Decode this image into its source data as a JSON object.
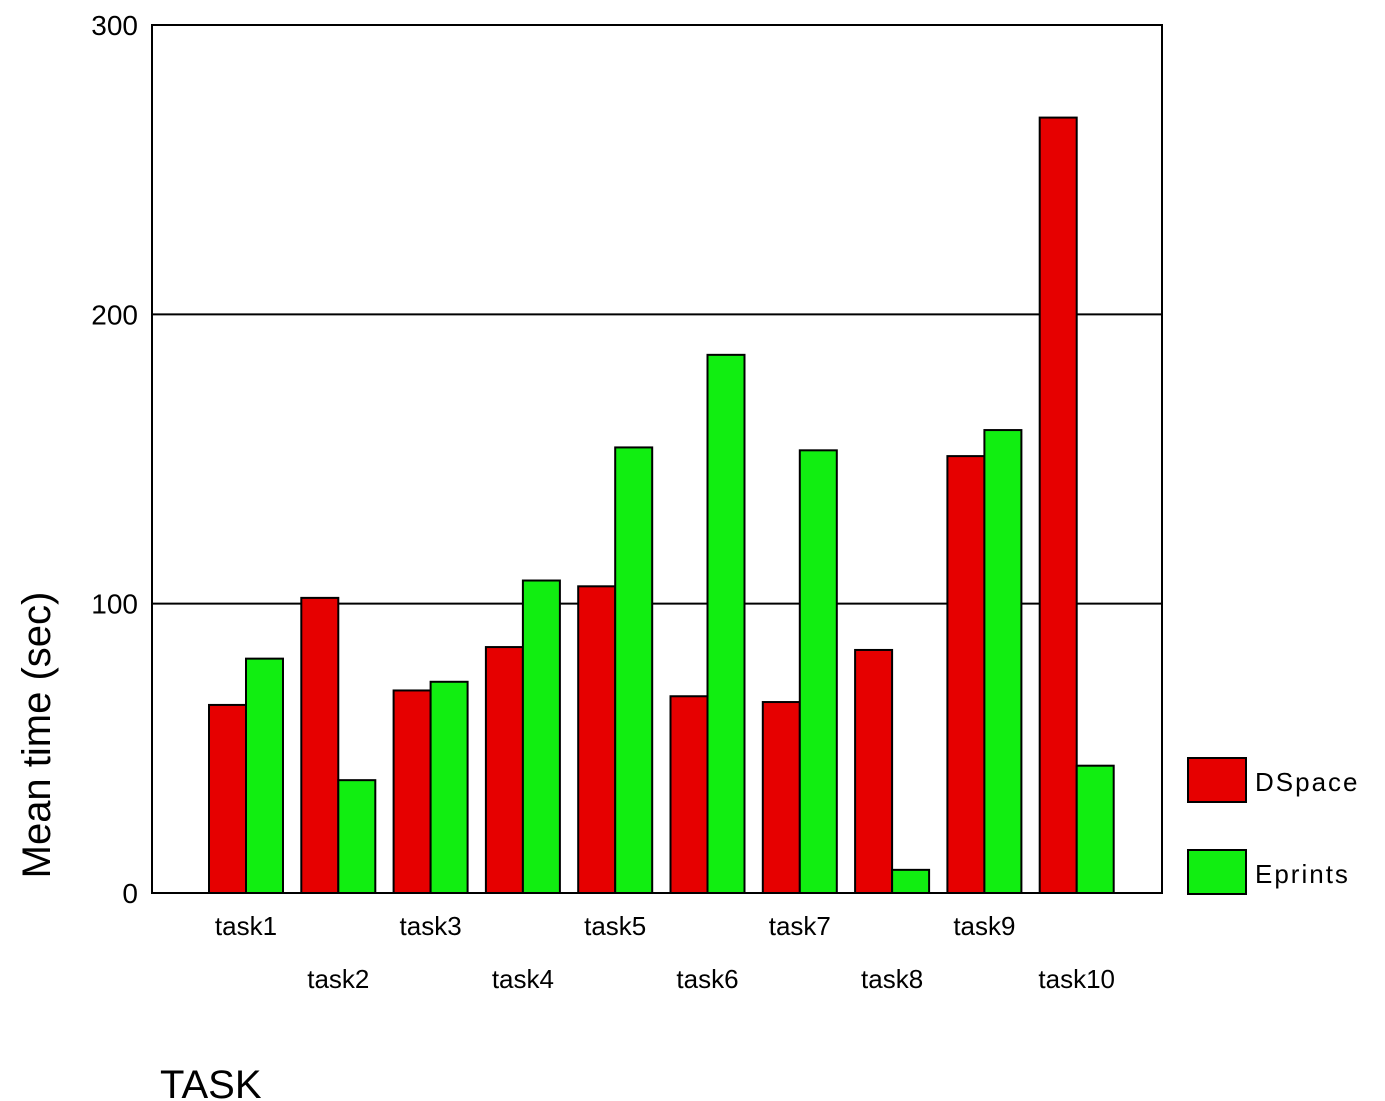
{
  "chart_data": {
    "type": "bar",
    "title": "",
    "xlabel": "TASK",
    "ylabel": "Mean time (sec)",
    "ylim": [
      0,
      300
    ],
    "yticks": [
      0,
      100,
      200,
      300
    ],
    "grid": true,
    "legend_position": "right",
    "categories": [
      "task1",
      "task2",
      "task3",
      "task4",
      "task5",
      "task6",
      "task7",
      "task8",
      "task9",
      "task10"
    ],
    "series": [
      {
        "name": "DSpace",
        "color": "#e60000",
        "values": [
          65,
          102,
          70,
          85,
          106,
          68,
          66,
          84,
          151,
          268
        ]
      },
      {
        "name": "Eprints",
        "color": "#11ee11",
        "values": [
          81,
          39,
          73,
          108,
          154,
          186,
          153,
          8,
          160,
          44
        ]
      }
    ]
  }
}
